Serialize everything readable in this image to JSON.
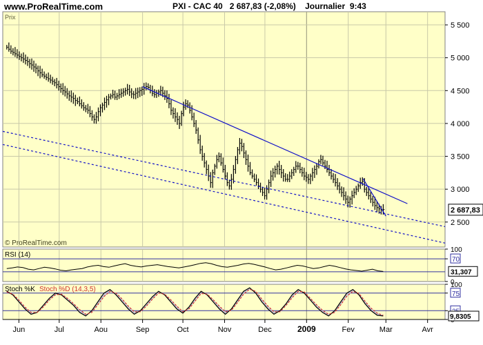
{
  "header": {
    "site": "www.ProRealTime.com",
    "title": "PXI - CAC 40",
    "price": "2 687,83 (-2,08%)",
    "period": "Journalier",
    "time": "9:43"
  },
  "chart_data": [
    {
      "type": "line",
      "panel": "price",
      "title": "Prix",
      "watermark": "© ProRealTime.com",
      "x_labels": [
        "Jun",
        "Jul",
        "Aou",
        "Sep",
        "Oct",
        "Nov",
        "Dec",
        "2009",
        "Fev",
        "Mar",
        "Avr"
      ],
      "y_ticks": [
        "5 500",
        "5 000",
        "4 500",
        "4 000",
        "3 500",
        "3 000",
        "2 500"
      ],
      "y_tick_values": [
        5500,
        5000,
        4500,
        4000,
        3500,
        3000,
        2500
      ],
      "ylim": [
        2120,
        5700
      ],
      "last_value_label": "2 687,83",
      "last_value": 2687.83,
      "series": [
        {
          "values": [
            5160,
            5130,
            5100,
            5080,
            5060,
            5040,
            5020,
            5000,
            4980,
            4960,
            4940,
            4910,
            4890,
            4860,
            4840,
            4800,
            4770,
            4740,
            4720,
            4700,
            4680,
            4660,
            4640,
            4620,
            4590,
            4560,
            4530,
            4500,
            4480,
            4450,
            4420,
            4400,
            4380,
            4350,
            4330,
            4300,
            4270,
            4240,
            4220,
            4200,
            4150,
            4100,
            4060,
            4100,
            4180,
            4240,
            4280,
            4320,
            4360,
            4400,
            4420,
            4440,
            4400,
            4420,
            4440,
            4460,
            4480,
            4500,
            4520,
            4480,
            4450,
            4440,
            4460,
            4480,
            4500,
            4520,
            4540,
            4560,
            4550,
            4500,
            4460,
            4440,
            4460,
            4480,
            4500,
            4460,
            4420,
            4380,
            4300,
            4200,
            4150,
            4100,
            4060,
            4000,
            4150,
            4250,
            4300,
            4280,
            4200,
            4100,
            4000,
            3900,
            3750,
            3600,
            3500,
            3400,
            3300,
            3200,
            3100,
            3250,
            3350,
            3450,
            3500,
            3400,
            3300,
            3200,
            3100,
            3050,
            3150,
            3300,
            3450,
            3600,
            3700,
            3650,
            3550,
            3450,
            3350,
            3250,
            3200,
            3150,
            3100,
            3050,
            3000,
            2950,
            2900,
            3000,
            3100,
            3200,
            3250,
            3300,
            3350,
            3300,
            3250,
            3200,
            3150,
            3150,
            3200,
            3250,
            3300,
            3350,
            3350,
            3300,
            3250,
            3200,
            3180,
            3150,
            3200,
            3250,
            3300,
            3350,
            3420,
            3450,
            3400,
            3350,
            3300,
            3250,
            3200,
            3150,
            3100,
            3050,
            3000,
            2950,
            2900,
            2850,
            2800,
            2850,
            2900,
            2950,
            3000,
            3050,
            3100,
            3120,
            3000,
            2950,
            2900,
            2850,
            2800,
            2750,
            2720,
            2700,
            2690,
            2690
          ],
          "x_range": [
            "2008-05-23",
            "2009-02-27"
          ]
        }
      ],
      "trendlines": [
        {
          "style": "solid",
          "from": {
            "date": "2008-09-01",
            "value": 4560
          },
          "to": {
            "date": "2009-03-17",
            "value": 2780
          }
        },
        {
          "style": "solid",
          "from": {
            "date": "2009-02-12",
            "value": 3160
          },
          "to": {
            "date": "2009-03-01",
            "value": 2590
          }
        },
        {
          "style": "dashed",
          "from": {
            "date": "2008-05-20",
            "value": 3880
          },
          "to": {
            "date": "2009-04-14",
            "value": 2430
          }
        },
        {
          "style": "dashed",
          "from": {
            "date": "2008-05-20",
            "value": 3680
          },
          "to": {
            "date": "2009-04-14",
            "value": 2180
          }
        }
      ]
    },
    {
      "type": "line",
      "panel": "rsi",
      "title": "RSI (14)",
      "y_ticks": [
        "100",
        "70",
        "0"
      ],
      "levels": [
        70,
        30
      ],
      "ylim": [
        0,
        100
      ],
      "last_value_label": "31,307",
      "last_value": 31.307,
      "series": [
        {
          "values": [
            40,
            42,
            45,
            43,
            38,
            36,
            40,
            44,
            42,
            39,
            35,
            33,
            36,
            38,
            40,
            45,
            48,
            50,
            46,
            44,
            48,
            52,
            55,
            50,
            47,
            45,
            48,
            50,
            52,
            49,
            46,
            44,
            42,
            45,
            48,
            52,
            56,
            58,
            55,
            50,
            46,
            44,
            47,
            50,
            54,
            56,
            53,
            49,
            45,
            40,
            36,
            38,
            42,
            46,
            50,
            48,
            44,
            40,
            42,
            46,
            50,
            47,
            43,
            39,
            36,
            34,
            32,
            35,
            38,
            33,
            31
          ]
        }
      ]
    },
    {
      "type": "line",
      "panel": "stochastic",
      "title": "Stoch %K",
      "title2": "Stoch %D (14,3,5)",
      "y_ticks": [
        "100",
        "75",
        "25",
        "0"
      ],
      "levels": [
        75,
        25
      ],
      "ylim": [
        0,
        100
      ],
      "last_value_label": "9,8305",
      "last_value": 9.8305,
      "series": [
        {
          "name": "Stoch %K",
          "values": [
            80,
            70,
            50,
            30,
            15,
            20,
            40,
            60,
            75,
            70,
            55,
            40,
            20,
            10,
            25,
            50,
            75,
            85,
            70,
            50,
            30,
            15,
            25,
            45,
            65,
            80,
            70,
            50,
            30,
            18,
            35,
            60,
            80,
            70,
            50,
            30,
            15,
            30,
            55,
            80,
            90,
            75,
            50,
            30,
            15,
            25,
            45,
            70,
            85,
            75,
            55,
            35,
            20,
            10,
            25,
            50,
            75,
            85,
            70,
            45,
            25,
            12,
            10
          ]
        },
        {
          "name": "Stoch %D",
          "values": [
            78,
            72,
            55,
            35,
            20,
            20,
            35,
            55,
            70,
            72,
            60,
            45,
            28,
            15,
            20,
            42,
            65,
            80,
            75,
            58,
            38,
            22,
            22,
            38,
            58,
            75,
            72,
            56,
            38,
            22,
            30,
            52,
            74,
            72,
            56,
            38,
            22,
            26,
            48,
            72,
            86,
            80,
            58,
            38,
            22,
            22,
            40,
            62,
            80,
            78,
            60,
            42,
            26,
            15,
            20,
            42,
            66,
            80,
            74,
            52,
            32,
            18,
            12
          ]
        }
      ]
    }
  ]
}
